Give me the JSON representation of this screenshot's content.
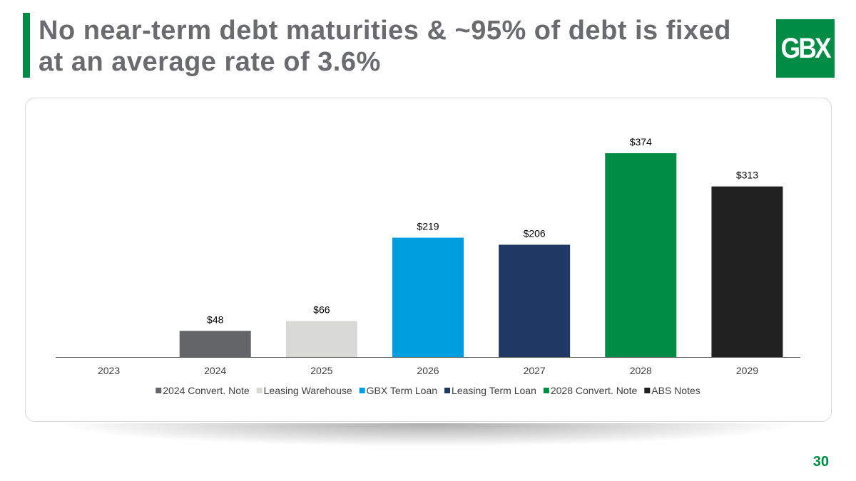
{
  "slide": {
    "title": "No near-term debt maturities & ~95% of debt is fixed at an average rate of 3.6%",
    "logo_text": "GBX",
    "page_number": "30",
    "colors": {
      "accent": "#008c45",
      "title_text": "#6a6b6e"
    }
  },
  "chart_data": {
    "type": "bar",
    "title": "",
    "xlabel": "",
    "ylabel": "",
    "categories": [
      "2023",
      "2024",
      "2025",
      "2026",
      "2027",
      "2028",
      "2029"
    ],
    "values": [
      null,
      48,
      66,
      219,
      206,
      374,
      313
    ],
    "value_labels": [
      "",
      "$48",
      "$66",
      "$219",
      "$206",
      "$374",
      "$313"
    ],
    "bar_colors": [
      "#ffffff",
      "#646569",
      "#d9d9d6",
      "#009fdf",
      "#1f3864",
      "#008c45",
      "#212121"
    ],
    "ylim": [
      0,
      374
    ],
    "grid": false,
    "legend_position": "bottom",
    "legend": [
      {
        "name": "2024 Convert. Note",
        "color": "#646569"
      },
      {
        "name": "Leasing Warehouse",
        "color": "#d9d9d6"
      },
      {
        "name": "GBX Term Loan",
        "color": "#009fdf"
      },
      {
        "name": "Leasing Term Loan",
        "color": "#1f3864"
      },
      {
        "name": "2028 Convert. Note",
        "color": "#008c45"
      },
      {
        "name": "ABS Notes",
        "color": "#212121"
      }
    ]
  }
}
